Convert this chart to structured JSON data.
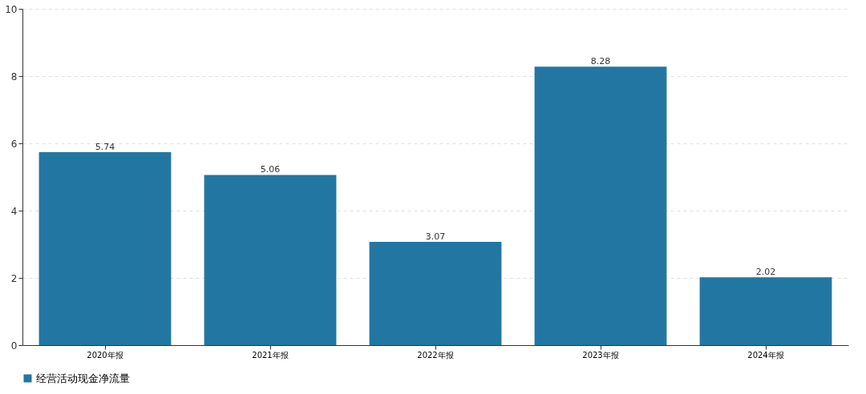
{
  "chart_data": {
    "type": "bar",
    "categories": [
      "2020年报",
      "2021年报",
      "2022年报",
      "2023年报",
      "2024年报"
    ],
    "series": [
      {
        "name": "经营活动现金净流量",
        "color": "#2277a2",
        "values": [
          5.74,
          5.06,
          3.07,
          8.28,
          2.02
        ]
      }
    ],
    "ylim": [
      0,
      10
    ],
    "yticks": [
      0,
      2,
      4,
      6,
      8,
      10
    ],
    "grid": "y",
    "legend": "bottom",
    "data_labels": true
  }
}
